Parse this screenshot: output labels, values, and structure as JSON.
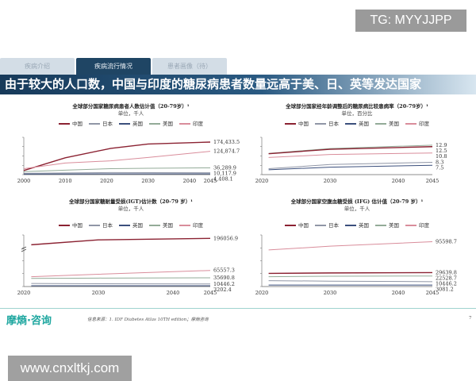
{
  "watermark_top": "TG: MYYJJPP",
  "watermark_bottom": "www.cnxltkj.com",
  "tabs": [
    {
      "label": "疾病介绍",
      "active": false
    },
    {
      "label": "疾病流行情况",
      "active": true
    },
    {
      "label": "患者画像（待）",
      "active": false
    }
  ],
  "headline": "由于较大的人口数，中国与印度的糖尿病患者数量远高于美、日、英等发达国家",
  "colors": {
    "中国": "#8b2232",
    "日本": "#9096a6",
    "英国": "#3b4f7c",
    "美国": "#93ab98",
    "印度": "#d98d9b"
  },
  "chart_data": [
    {
      "type": "line",
      "title": "全球部分国家糖尿病患者人数估计值（20-79岁）¹",
      "unit": "单位，千人",
      "legend": [
        "中国",
        "日本",
        "英国",
        "美国",
        "印度"
      ],
      "x": [
        2000,
        2010,
        2021,
        2030,
        2045
      ],
      "xticks": [
        "2000",
        "2010",
        "2020",
        "2030",
        "2040",
        "2045"
      ],
      "ylim": [
        0,
        200000
      ],
      "xlim": [
        2000,
        2045
      ],
      "series": [
        {
          "name": "中国",
          "values": [
            22000,
            90000,
            140870,
            164000,
            174433.5
          ],
          "label": "174,433.5"
        },
        {
          "name": "印度",
          "values": [
            32000,
            62000,
            74000,
            92000,
            124874.7
          ],
          "label": "124,874.7"
        },
        {
          "name": "美国",
          "values": [
            16000,
            24000,
            32000,
            34000,
            36289.9
          ],
          "label": "36,289.9"
        },
        {
          "name": "日本",
          "values": [
            7000,
            9000,
            11000,
            10800,
            10117.9
          ],
          "label": "10,117.9"
        },
        {
          "name": "英国",
          "values": [
            3000,
            3500,
            4200,
            4300,
            4408.1
          ],
          "label": "4,408.1"
        }
      ]
    },
    {
      "type": "line",
      "title": "全球部分国家经年龄调整后的糖尿病比较患病率（20-79岁）¹",
      "unit": "单位，百分比",
      "legend": [
        "中国",
        "日本",
        "英国",
        "美国",
        "印度"
      ],
      "x": [
        2021,
        2030,
        2045
      ],
      "xticks": [
        "2020",
        "2030",
        "2040",
        "2045"
      ],
      "ylim": [
        5,
        15
      ],
      "xlim": [
        2020,
        2045
      ],
      "series": [
        {
          "name": "美国",
          "values": [
            10.7,
            12.0,
            12.9
          ],
          "label": "12.9"
        },
        {
          "name": "中国",
          "values": [
            10.6,
            11.8,
            12.5
          ],
          "label": "12.5"
        },
        {
          "name": "印度",
          "values": [
            9.6,
            10.4,
            10.8
          ],
          "label": "10.8"
        },
        {
          "name": "日本",
          "values": [
            6.6,
            7.7,
            8.3
          ],
          "label": "8.3"
        },
        {
          "name": "英国",
          "values": [
            6.3,
            7.0,
            7.5
          ],
          "label": "7.5"
        }
      ]
    },
    {
      "type": "line",
      "title": "全球部分国家糖耐量受损(IGT)估计数（20-79 岁）¹",
      "unit": "单位，千人",
      "legend": [
        "中国",
        "日本",
        "英国",
        "美国",
        "印度"
      ],
      "x": [
        2021,
        2030,
        2045
      ],
      "xticks": [
        "2020",
        "2030",
        "2040",
        "2045"
      ],
      "ylim": [
        0,
        210000
      ],
      "xlim": [
        2020,
        2045
      ],
      "axis_break": true,
      "series": [
        {
          "name": "中国",
          "values": [
            170000,
            190000,
            196056.9
          ],
          "label": "196056.9"
        },
        {
          "name": "印度",
          "values": [
            40000,
            50000,
            65557.3
          ],
          "label": "65557.3"
        },
        {
          "name": "美国",
          "values": [
            33000,
            34500,
            35690.8
          ],
          "label": "35690.8"
        },
        {
          "name": "日本",
          "values": [
            12500,
            11500,
            10446.2
          ],
          "label": "10446.2"
        },
        {
          "name": "英国",
          "values": [
            3400,
            3300,
            3202.4
          ],
          "label": "3202.4"
        }
      ]
    },
    {
      "type": "line",
      "title": "全球部分国家空腹血糖受损 (IFG) 估计值（20-79 岁）¹",
      "unit": "单位，千人",
      "legend": [
        "中国",
        "日本",
        "英国",
        "美国",
        "印度"
      ],
      "x": [
        2021,
        2030,
        2045
      ],
      "xticks": [
        "2020",
        "2030",
        "2040",
        "2045"
      ],
      "ylim": [
        0,
        110000
      ],
      "xlim": [
        2020,
        2045
      ],
      "series": [
        {
          "name": "印度",
          "values": [
            78000,
            86000,
            95598.7
          ],
          "label": "95598.7"
        },
        {
          "name": "中国",
          "values": [
            28000,
            29000,
            29639.8
          ],
          "label": "29639.8"
        },
        {
          "name": "美国",
          "values": [
            21000,
            22000,
            22528.7
          ],
          "label": "22528.7"
        },
        {
          "name": "日本",
          "values": [
            12500,
            11500,
            10446.2
          ],
          "label": "10446.2"
        },
        {
          "name": "英国",
          "values": [
            3200,
            3100,
            3081.2
          ],
          "label": "3081.2"
        }
      ]
    }
  ],
  "footer": {
    "logo": "摩熵·咨询",
    "source": "信息来源：1. IDF Diabetes Atlas 10TH edition；摩熵咨询",
    "page": "7"
  }
}
